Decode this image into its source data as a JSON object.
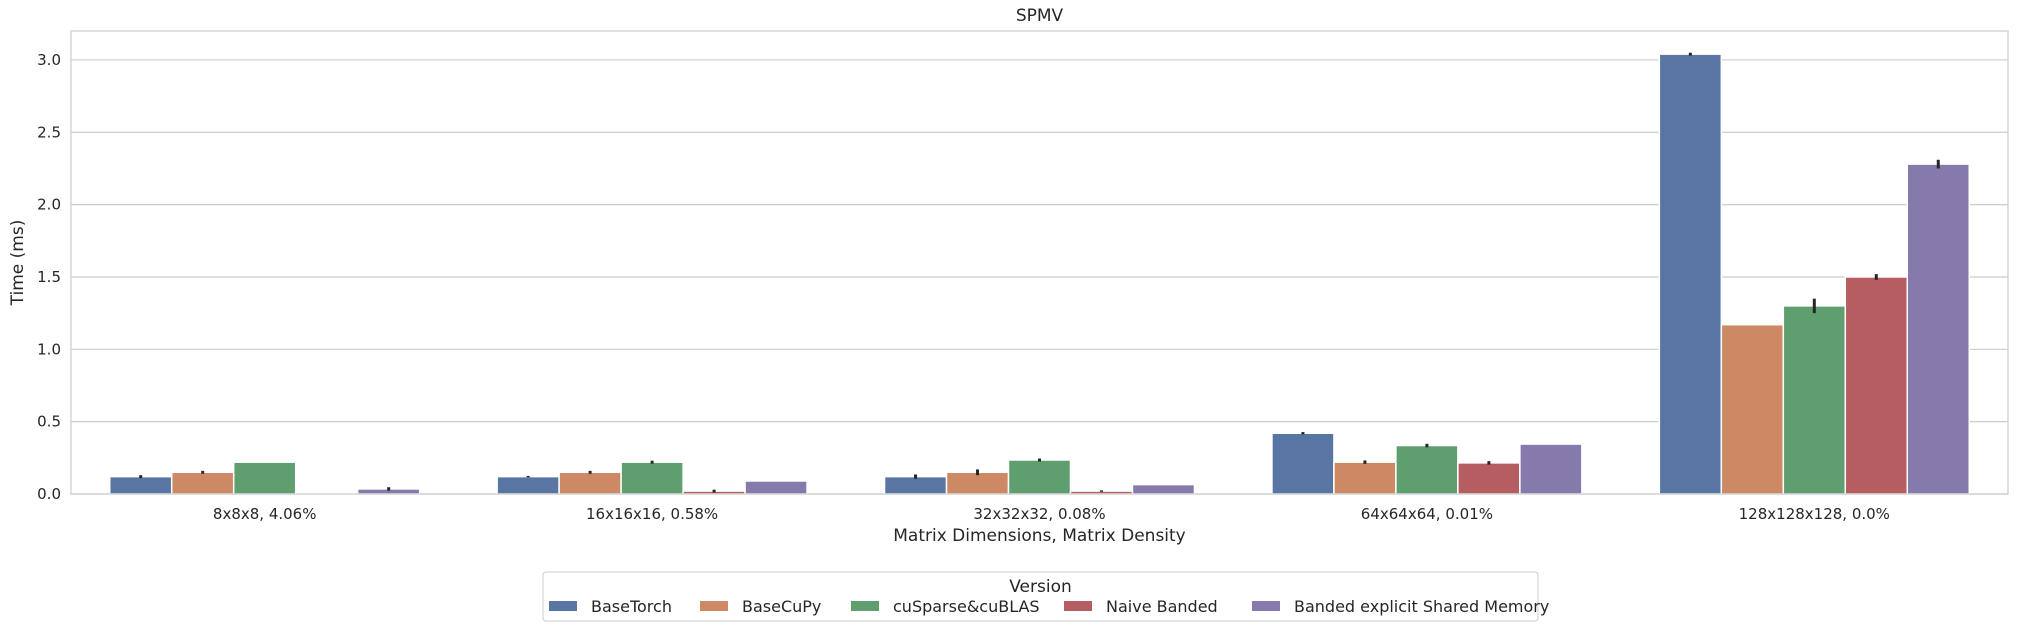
{
  "chart_data": {
    "type": "bar",
    "title": "SPMV",
    "xlabel": "Matrix Dimensions, Matrix Density",
    "ylabel": "Time (ms)",
    "ylim": [
      0,
      3.2
    ],
    "yticks": [
      0.0,
      0.5,
      1.0,
      1.5,
      2.0,
      2.5,
      3.0
    ],
    "ytick_labels": [
      "0.0",
      "0.5",
      "1.0",
      "1.5",
      "2.0",
      "2.5",
      "3.0"
    ],
    "grid": true,
    "categories": [
      "8x8x8, 4.06%",
      "16x16x16, 0.58%",
      "32x32x32, 0.08%",
      "64x64x64, 0.01%",
      "128x128x128, 0.0%"
    ],
    "legend": {
      "title": "Version",
      "placement": "bottom-center"
    },
    "series": [
      {
        "name": "BaseTorch",
        "color": "#5875a4",
        "values": [
          0.12,
          0.12,
          0.12,
          0.42,
          3.04
        ],
        "err": [
          0.01,
          0.005,
          0.015,
          0.008,
          0.01
        ]
      },
      {
        "name": "BaseCuPy",
        "color": "#cc8963",
        "values": [
          0.15,
          0.15,
          0.15,
          0.22,
          1.17
        ],
        "err": [
          0.01,
          0.01,
          0.02,
          0.012,
          0.0
        ]
      },
      {
        "name": "cuSparse&cuBLAS",
        "color": "#5f9e6e",
        "values": [
          0.22,
          0.22,
          0.235,
          0.335,
          1.3
        ],
        "err": [
          0.0,
          0.01,
          0.01,
          0.012,
          0.05
        ]
      },
      {
        "name": "Naive Banded",
        "color": "#b55d60",
        "values": [
          0.005,
          0.02,
          0.02,
          0.215,
          1.5
        ],
        "err": [
          0.0,
          0.01,
          0.005,
          0.012,
          0.02
        ]
      },
      {
        "name": "Banded explicit Shared Memory",
        "color": "#857aab",
        "values": [
          0.035,
          0.09,
          0.065,
          0.345,
          2.28
        ],
        "err": [
          0.012,
          0.0,
          0.0,
          0.0,
          0.03
        ]
      }
    ]
  }
}
